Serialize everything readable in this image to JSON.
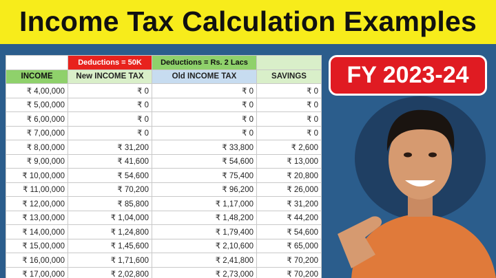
{
  "header": {
    "title": "Income Tax Calculation Examples"
  },
  "badge": {
    "label": "FY 2023-24"
  },
  "table": {
    "group_headers": [
      "Deductions = 50K",
      "Deductions = Rs. 2 Lacs"
    ],
    "columns": [
      "INCOME",
      "New INCOME TAX",
      "Old INCOME TAX",
      "SAVINGS"
    ],
    "rows": [
      [
        "₹ 4,00,000",
        "₹ 0",
        "₹ 0",
        "₹ 0"
      ],
      [
        "₹ 5,00,000",
        "₹ 0",
        "₹ 0",
        "₹ 0"
      ],
      [
        "₹ 6,00,000",
        "₹ 0",
        "₹ 0",
        "₹ 0"
      ],
      [
        "₹ 7,00,000",
        "₹ 0",
        "₹ 0",
        "₹ 0"
      ],
      [
        "₹ 8,00,000",
        "₹ 31,200",
        "₹ 33,800",
        "₹ 2,600"
      ],
      [
        "₹ 9,00,000",
        "₹ 41,600",
        "₹ 54,600",
        "₹ 13,000"
      ],
      [
        "₹ 10,00,000",
        "₹ 54,600",
        "₹ 75,400",
        "₹ 20,800"
      ],
      [
        "₹ 11,00,000",
        "₹ 70,200",
        "₹ 96,200",
        "₹ 26,000"
      ],
      [
        "₹ 12,00,000",
        "₹ 85,800",
        "₹ 1,17,000",
        "₹ 31,200"
      ],
      [
        "₹ 13,00,000",
        "₹ 1,04,000",
        "₹ 1,48,200",
        "₹ 44,200"
      ],
      [
        "₹ 14,00,000",
        "₹ 1,24,800",
        "₹ 1,79,400",
        "₹ 54,600"
      ],
      [
        "₹ 15,00,000",
        "₹ 1,45,600",
        "₹ 2,10,600",
        "₹ 65,000"
      ],
      [
        "₹ 16,00,000",
        "₹ 1,71,600",
        "₹ 2,41,800",
        "₹ 70,200"
      ],
      [
        "₹ 17,00,000",
        "₹ 2,02,800",
        "₹ 2,73,000",
        "₹ 70,200"
      ]
    ]
  }
}
